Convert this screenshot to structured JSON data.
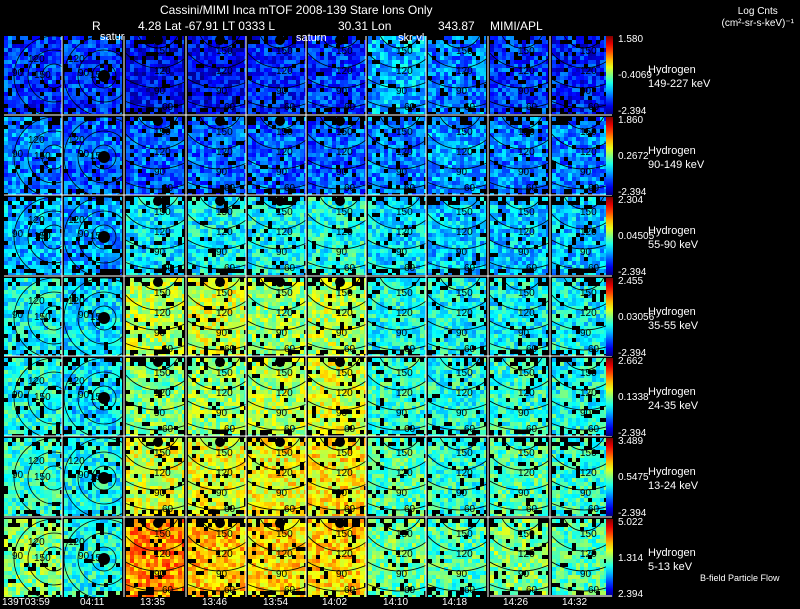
{
  "chart_data": {
    "type": "heatmap",
    "title": "Cassini/MIMI Inca mTOF  2008-139   Stare    Ions Only",
    "subtitle": {
      "r_label": "R",
      "position": "4.28 Lat -67.91 LT 0333 L",
      "lon": "30.31 Lon",
      "lon_value": "343.87",
      "credit": "MIMI/APL"
    },
    "legend_title": "Log Cnts",
    "legend_units": "(cm²-sr-s-keV)⁻¹",
    "time_labels": [
      "139T03:59",
      "04:11",
      "13:35",
      "13:46",
      "13:54",
      "14:02",
      "14:10",
      "14:18",
      "14:26",
      "14:32"
    ],
    "annotations": [
      "satur",
      "saturn",
      "skr-vl",
      "B-field Particle Flow"
    ],
    "contour_labels": [
      "60",
      "90",
      "120",
      "150"
    ],
    "bands": [
      {
        "species": "Hydrogen",
        "energy": "149-227 keV",
        "cb_max": "1.580",
        "cb_mid": "-0.4069",
        "cb_min": "-2.394"
      },
      {
        "species": "Hydrogen",
        "energy": "90-149 keV",
        "cb_max": "1.860",
        "cb_mid": "0.2672",
        "cb_min": "-2.394"
      },
      {
        "species": "Hydrogen",
        "energy": "55-90 keV",
        "cb_max": "2.304",
        "cb_mid": "0.04505",
        "cb_min": "-2.394"
      },
      {
        "species": "Hydrogen",
        "energy": "35-55 keV",
        "cb_max": "2.455",
        "cb_mid": "0.03056",
        "cb_min": "-2.394"
      },
      {
        "species": "Hydrogen",
        "energy": "24-35 keV",
        "cb_max": "2.662",
        "cb_mid": "0.1338",
        "cb_min": "-2.394"
      },
      {
        "species": "Hydrogen",
        "energy": "13-24 keV",
        "cb_max": "3.489",
        "cb_mid": "0.5475",
        "cb_min": "-2.394"
      },
      {
        "species": "Hydrogen",
        "energy": "5-13 keV",
        "cb_max": "5.022",
        "cb_mid": "1.314",
        "cb_min": "2.394"
      }
    ],
    "panel_level": [
      [
        0.18,
        0.18,
        0.12,
        0.12,
        0.15,
        0.18,
        0.3,
        0.25,
        0.18,
        0.15
      ],
      [
        0.25,
        0.22,
        0.22,
        0.22,
        0.22,
        0.22,
        0.25,
        0.28,
        0.25,
        0.25
      ],
      [
        0.3,
        0.28,
        0.35,
        0.38,
        0.38,
        0.4,
        0.35,
        0.32,
        0.32,
        0.32
      ],
      [
        0.38,
        0.35,
        0.55,
        0.58,
        0.52,
        0.55,
        0.4,
        0.38,
        0.38,
        0.38
      ],
      [
        0.4,
        0.35,
        0.5,
        0.52,
        0.55,
        0.58,
        0.42,
        0.4,
        0.42,
        0.4
      ],
      [
        0.42,
        0.38,
        0.58,
        0.6,
        0.62,
        0.64,
        0.45,
        0.42,
        0.45,
        0.42
      ],
      [
        0.5,
        0.4,
        0.74,
        0.68,
        0.65,
        0.66,
        0.48,
        0.45,
        0.5,
        0.45
      ]
    ]
  }
}
